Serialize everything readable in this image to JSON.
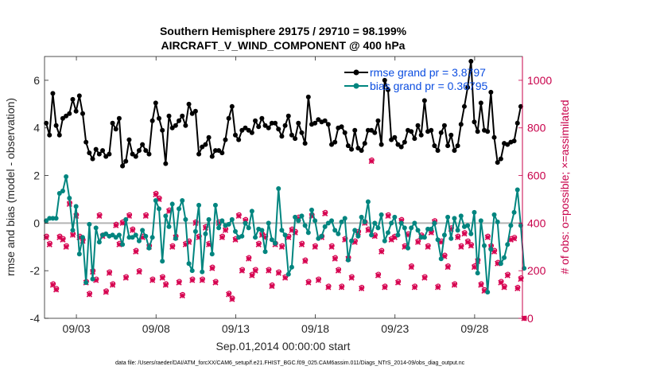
{
  "chart_data": {
    "type": "line",
    "title_line1": "Southern Hemisphere 29175 / 29710 = 98.199%",
    "title_line2": "AIRCRAFT_V_WIND_COMPONENT @ 400 hPa",
    "xlabel": "Sep.01,2014 00:00:00 start",
    "ylabel_left": "rmse and bias (model - observation)",
    "ylabel_right": "# of obs: o=possible; ×=assimilated",
    "x_ticks": [
      "09/03",
      "09/08",
      "09/13",
      "09/18",
      "09/23",
      "09/28"
    ],
    "x_tick_days": [
      3,
      8,
      13,
      18,
      23,
      28
    ],
    "xlim_days": [
      1.0,
      31.0
    ],
    "ylim_left": [
      -4,
      7
    ],
    "y_ticks_left": [
      "-4",
      "-2",
      "0",
      "2",
      "4",
      "6"
    ],
    "y_tick_values_left": [
      -4,
      -2,
      0,
      2,
      4,
      6
    ],
    "ylim_right": [
      0,
      1100
    ],
    "y_ticks_right": [
      "0",
      "200",
      "400",
      "600",
      "800",
      "1000"
    ],
    "y_tick_values_right": [
      0,
      200,
      400,
      600,
      800,
      1000
    ],
    "legend": {
      "placement": "top-right",
      "rmse_label": "rmse grand pr = 3.8797",
      "bias_label": "bias grand pr = 0.36795"
    },
    "footnote": "data file: /Users/raeder/DAI/ATM_forcXX/CAM6_setup/f.e21.FHIST_BGC.f09_025.CAM6assim.011/Diags_NTrS_2014-09/obs_diag_output.nc",
    "colors": {
      "rmse": "#000000",
      "bias": "#00857f",
      "obs": "#d6004f",
      "axis_right": "#c8004a",
      "legend_text": "#0b4de0",
      "zero_line": "#b4b4b4"
    },
    "series": [
      {
        "name": "rmse",
        "values": [
          4.2,
          3.7,
          5.45,
          4.1,
          3.7,
          4.4,
          4.5,
          4.6,
          5.2,
          4.7,
          5.35,
          4.6,
          3.4,
          2.95,
          2.7,
          3.1,
          2.9,
          3.05,
          2.8,
          2.9,
          4.2,
          3.95,
          4.4,
          2.4,
          2.6,
          3.5,
          2.9,
          2.8,
          3.05,
          3.3,
          3.05,
          2.9,
          4.3,
          5.05,
          4.4,
          3.9,
          2.5,
          4.5,
          4.0,
          4.1,
          4.3,
          4.5,
          4.1,
          5.0,
          4.6,
          4.7,
          2.9,
          3.2,
          3.3,
          3.6,
          2.8,
          3.05,
          3.05,
          2.95,
          3.5,
          4.4,
          4.9,
          3.7,
          3.5,
          3.9,
          4.0,
          3.9,
          3.8,
          4.3,
          4.05,
          4.4,
          4.1,
          4.0,
          4.2,
          4.2,
          3.95,
          3.65,
          4.1,
          4.5,
          3.7,
          3.55,
          4.2,
          3.8,
          3.35,
          5.3,
          4.15,
          4.2,
          4.35,
          4.25,
          4.3,
          4.15,
          3.3,
          3.4,
          4.0,
          4.05,
          3.8,
          3.25,
          3.1,
          3.9,
          3.15,
          3.05,
          3.35,
          3.9,
          3.9,
          3.8,
          4.3,
          3.3,
          6.0,
          5.6,
          3.5,
          3.6,
          3.3,
          3.2,
          3.4,
          3.9,
          3.85,
          3.55,
          4.1,
          3.7,
          5.15,
          3.85,
          3.9,
          3.25,
          3.05,
          3.8,
          4.1,
          3.25,
          3.7,
          3.05,
          3.25,
          4.15,
          4.9,
          5.7,
          6.8,
          4.25,
          3.85,
          5.05,
          3.9,
          3.85,
          5.5,
          3.6,
          2.55,
          2.7,
          3.35,
          3.3,
          3.4,
          3.45,
          4.2,
          4.9
        ]
      },
      {
        "name": "bias",
        "values": [
          0.1,
          0.2,
          0.2,
          0.2,
          1.25,
          1.35,
          1.95,
          1.05,
          -0.3,
          0.7,
          -1.3,
          -0.6,
          -2.5,
          -0.05,
          -2.35,
          -0.2,
          -0.8,
          -0.5,
          -0.45,
          -0.55,
          -0.5,
          -0.6,
          -0.5,
          -0.9,
          0.15,
          -0.6,
          -0.6,
          -0.5,
          -0.75,
          -0.3,
          -0.55,
          -1.05,
          -0.6,
          0.95,
          0.6,
          -1.6,
          0.3,
          -0.15,
          0.8,
          -0.65,
          0.6,
          0.95,
          0.15,
          -1.7,
          -2.0,
          -0.35,
          0.75,
          -2.05,
          -0.45,
          0.15,
          -1.3,
          0.75,
          -0.2,
          0.1,
          -0.1,
          -0.05,
          0.15,
          -0.35,
          -0.6,
          -0.55,
          0.0,
          -0.2,
          0.5,
          -0.6,
          -0.25,
          -0.3,
          -1.2,
          0.0,
          -0.7,
          -0.85,
          1.45,
          -0.3,
          -0.5,
          -2.15,
          -1.85,
          0.25,
          0.1,
          0.3,
          -0.1,
          -0.4,
          0.55,
          0.1,
          -0.65,
          -0.55,
          -0.15,
          0.0,
          0.1,
          -0.3,
          -0.45,
          0.05,
          0.2,
          -1.55,
          -0.75,
          -0.3,
          -0.55,
          0.25,
          0.05,
          0.9,
          -0.5,
          0.0,
          -0.2,
          0.35,
          -0.75,
          -0.4,
          0.0,
          0.25,
          -0.5,
          0.0,
          -0.2,
          -1.05,
          -0.2,
          0.0,
          -0.3,
          -0.6,
          -0.6,
          -0.25,
          -0.25,
          0.0,
          -0.7,
          -1.5,
          -0.5,
          0.25,
          -0.65,
          0.2,
          -0.3,
          0.3,
          -0.15,
          -0.1,
          -0.45,
          0.45,
          -2.1,
          0.1,
          -0.95,
          -2.9,
          -1.1,
          0.35,
          0.05,
          -1.7,
          -1.45,
          -0.9,
          -0.1,
          0.45,
          1.4,
          -0.1,
          -1.9
        ]
      },
      {
        "name": "obs_assimilated",
        "values": [
          340,
          310,
          140,
          120,
          340,
          330,
          300,
          480,
          350,
          430,
          340,
          325,
          150,
          100,
          195,
          160,
          430,
          345,
          110,
          190,
          140,
          390,
          310,
          400,
          170,
          430,
          370,
          280,
          195,
          340,
          430,
          300,
          160,
          520,
          500,
          170,
          140,
          450,
          300,
          340,
          150,
          95,
          310,
          320,
          160,
          400,
          340,
          160,
          380,
          310,
          210,
          150,
          400,
          340,
          370,
          100,
          80,
          330,
          430,
          200,
          410,
          250,
          180,
          200,
          310,
          350,
          340,
          200,
          135,
          310,
          190,
          300,
          170,
          340,
          370,
          360,
          420,
          310,
          240,
          150,
          430,
          300,
          160,
          340,
          440,
          130,
          300,
          250,
          200,
          130,
          330,
          250,
          170,
          320,
          360,
          125,
          400,
          370,
          660,
          345,
          180,
          280,
          130,
          430,
          330,
          340,
          150,
          410,
          300,
          350,
          215,
          130,
          320,
          345,
          170,
          300,
          360,
          405,
          130,
          320,
          260,
          215,
          375,
          140,
          340,
          300,
          355,
          320,
          305,
          215,
          240,
          140,
          115,
          340,
          300,
          280,
          230,
          150,
          130,
          180,
          330,
          335,
          125,
          165,
          0
        ]
      },
      {
        "name": "obs_possible",
        "values": [
          345,
          315,
          145,
          125,
          345,
          335,
          305,
          485,
          355,
          435,
          345,
          330,
          155,
          105,
          200,
          165,
          435,
          350,
          115,
          195,
          145,
          395,
          315,
          405,
          175,
          435,
          375,
          285,
          200,
          345,
          435,
          305,
          165,
          525,
          505,
          175,
          145,
          455,
          305,
          345,
          155,
          100,
          315,
          325,
          165,
          405,
          345,
          165,
          385,
          315,
          215,
          155,
          405,
          345,
          375,
          105,
          85,
          335,
          435,
          205,
          415,
          255,
          185,
          205,
          315,
          355,
          345,
          205,
          140,
          315,
          195,
          305,
          175,
          345,
          375,
          365,
          425,
          315,
          245,
          155,
          435,
          305,
          165,
          345,
          445,
          135,
          305,
          255,
          205,
          135,
          335,
          255,
          175,
          325,
          365,
          130,
          405,
          375,
          665,
          350,
          185,
          285,
          135,
          435,
          335,
          345,
          155,
          415,
          305,
          355,
          220,
          135,
          325,
          350,
          175,
          305,
          365,
          410,
          135,
          325,
          265,
          220,
          380,
          145,
          345,
          305,
          360,
          325,
          310,
          220,
          245,
          145,
          120,
          345,
          305,
          285,
          235,
          155,
          135,
          185,
          335,
          340,
          130,
          170,
          0
        ]
      }
    ]
  }
}
